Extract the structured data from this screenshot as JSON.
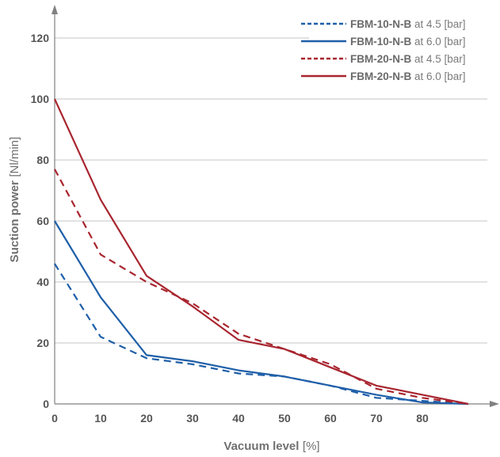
{
  "chart_data": {
    "type": "line",
    "title": "",
    "xlabel": {
      "bold": "Vacuum level",
      "unit": "[%]"
    },
    "ylabel": {
      "bold": "Suction power",
      "unit": "[Nl/min]"
    },
    "xlim": [
      0,
      90
    ],
    "ylim": [
      0,
      120
    ],
    "x_ticks": [
      "0",
      "10",
      "20",
      "30",
      "40",
      "50",
      "60",
      "70",
      "80"
    ],
    "y_ticks": [
      "0",
      "20",
      "40",
      "60",
      "80",
      "100",
      "120"
    ],
    "grid": "horizontal",
    "legend_position": "top-right",
    "series": [
      {
        "name": "FBM-10-N-B",
        "legend_suffix": "at 4.5 [bar]",
        "color": "#1f5fa8",
        "dash": true,
        "x": [
          0,
          10,
          20,
          30,
          40,
          50,
          60,
          70,
          80,
          90
        ],
        "y": [
          46,
          22,
          15,
          13,
          10,
          9,
          6,
          2,
          1,
          0
        ]
      },
      {
        "name": "FBM-10-N-B",
        "legend_suffix": "at 6.0 [bar]",
        "color": "#1f5fa8",
        "dash": false,
        "x": [
          0,
          10,
          20,
          30,
          40,
          50,
          60,
          70,
          80,
          90
        ],
        "y": [
          60,
          35,
          16,
          14,
          11,
          9,
          6,
          3,
          0.5,
          0
        ]
      },
      {
        "name": "FBM-20-N-B",
        "legend_suffix": "at 4.5 [bar]",
        "color": "#a8252f",
        "dash": true,
        "x": [
          0,
          10,
          20,
          30,
          40,
          50,
          60,
          70,
          80,
          90
        ],
        "y": [
          77,
          49,
          40,
          33,
          23,
          18,
          13,
          5,
          2,
          0
        ]
      },
      {
        "name": "FBM-20-N-B",
        "legend_suffix": "at 6.0 [bar]",
        "color": "#a8252f",
        "dash": false,
        "x": [
          0,
          10,
          20,
          30,
          40,
          50,
          60,
          70,
          80,
          90
        ],
        "y": [
          100,
          67,
          42,
          32,
          21,
          18,
          12,
          6,
          3,
          0
        ]
      }
    ]
  }
}
